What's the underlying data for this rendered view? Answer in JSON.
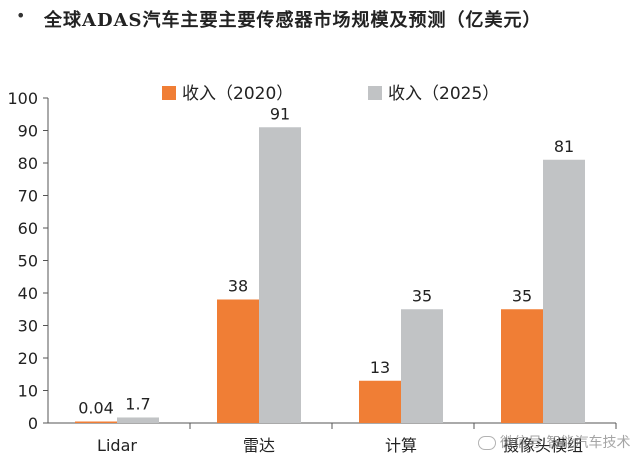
{
  "title_bullet": "•",
  "chart_data": {
    "type": "bar",
    "title": "全球ADAS汽车主要主要传感器市场规模及预测（亿美元）",
    "categories": [
      "Lidar",
      "雷达",
      "计算",
      "摄像头模组"
    ],
    "series": [
      {
        "name": "收入（2020）",
        "values": [
          0.04,
          38,
          13,
          35
        ],
        "labels": [
          "0.04",
          "38",
          "13",
          "35"
        ],
        "color": "#F07E35"
      },
      {
        "name": "收入（2025）",
        "values": [
          1.7,
          91,
          35,
          81
        ],
        "labels": [
          "1.7",
          "91",
          "35",
          "81"
        ],
        "color": "#C1C3C5"
      }
    ],
    "ylim": [
      0,
      100
    ],
    "yticks": [
      "0",
      "10",
      "20",
      "30",
      "40",
      "50",
      "60",
      "70",
      "80",
      "90",
      "100"
    ],
    "grid": false,
    "legend_position": "top"
  },
  "watermark": "微信号 智能汽车技术"
}
